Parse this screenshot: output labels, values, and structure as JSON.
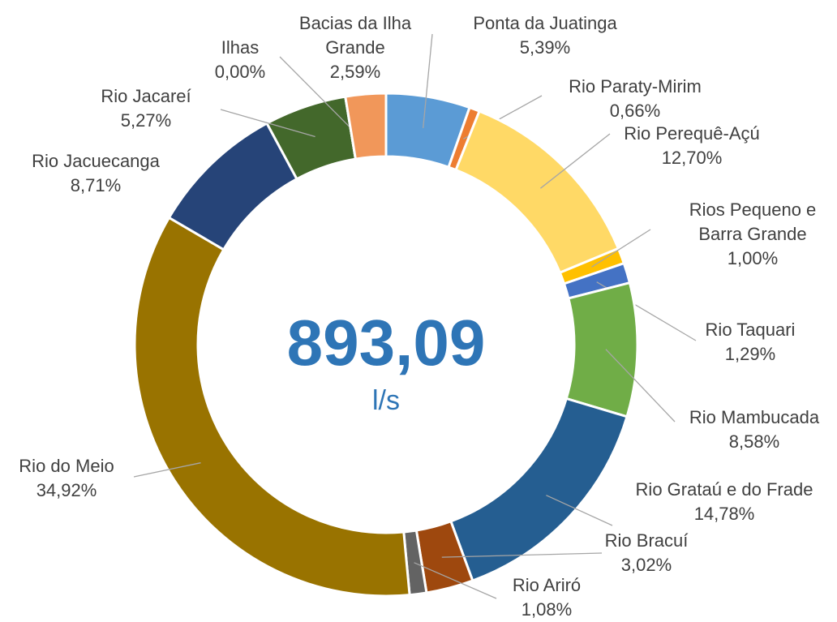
{
  "chart_data": {
    "type": "donut",
    "center_value": "893,09",
    "center_unit": "l/s",
    "categories": [
      "Ponta da Juatinga",
      "Rio Paraty-Mirim",
      "Rio Perequê-Açú",
      "Rios Pequeno e Barra Grande",
      "Rio Taquari",
      "Rio Mambucada",
      "Rio Grataú e do Frade",
      "Rio Bracuí",
      "Rio Ariró",
      "Rio do Meio",
      "Rio Jacuecanga",
      "Rio Jacareí",
      "Ilhas",
      "Bacias da Ilha Grande"
    ],
    "values": [
      5.39,
      0.66,
      12.7,
      1.0,
      1.29,
      8.58,
      14.78,
      3.02,
      1.08,
      34.92,
      8.71,
      5.27,
      0.0,
      2.59
    ],
    "value_labels": [
      "5,39%",
      "0,66%",
      "12,70%",
      "1,00%",
      "1,29%",
      "8,58%",
      "14,78%",
      "3,02%",
      "1,08%",
      "34,92%",
      "8,71%",
      "5,27%",
      "0,00%",
      "2,59%"
    ],
    "colors": [
      "#5b9bd5",
      "#ed7d31",
      "#ffd966",
      "#ffc000",
      "#4472c4",
      "#70ad47",
      "#255e91",
      "#9e480e",
      "#636363",
      "#997300",
      "#264478",
      "#43682b",
      "#a5a5a5",
      "#f1975a"
    ]
  }
}
